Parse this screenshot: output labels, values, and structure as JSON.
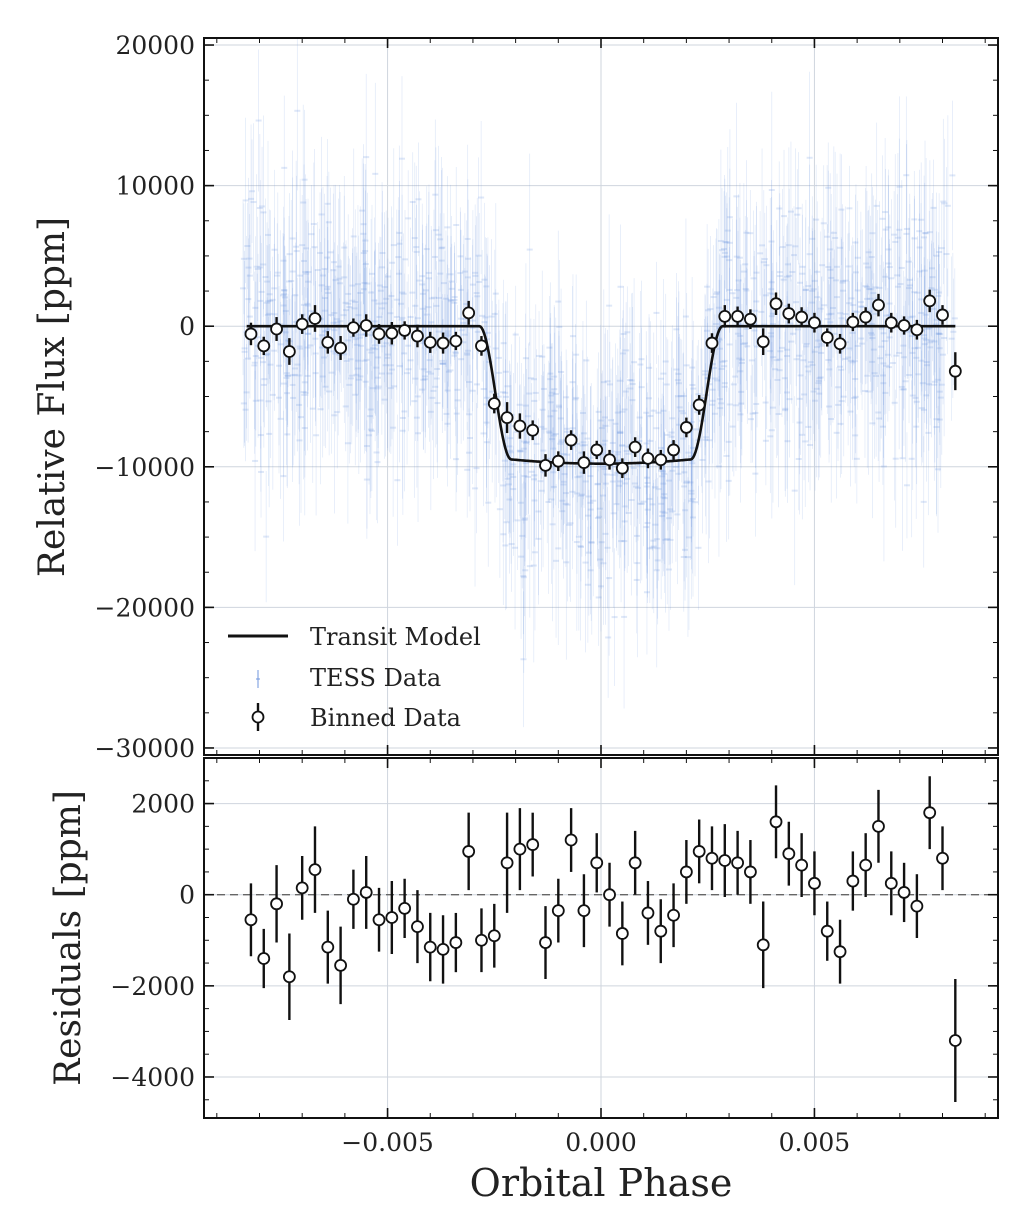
{
  "chart_data": [
    {
      "type": "scatter",
      "panel": "top",
      "ylabel": "Relative Flux [ppm]",
      "xlim": [
        -0.0093,
        0.0093
      ],
      "ylim": [
        -30500,
        20500
      ],
      "yticks": [
        20000,
        10000,
        0,
        -10000,
        -20000,
        -30000
      ],
      "ytick_labels": [
        "20000",
        "10000",
        "0",
        "−10000",
        "−20000",
        "−30000"
      ],
      "xticks": [
        -0.005,
        0.0,
        0.005
      ],
      "grid": true,
      "legend": {
        "placement": "lower-left",
        "entries": [
          "Transit Model",
          "TESS Data",
          "Binned Data"
        ]
      },
      "transit_model": {
        "depth": -9500,
        "t14": 0.0057,
        "t23": 0.0042,
        "x_range": [
          -0.0083,
          0.0083
        ]
      },
      "tess_data": {
        "x_range": [
          -0.0084,
          0.0083
        ],
        "scatter_sigma": 4500,
        "error_bar": 5000,
        "n_points": 1400
      },
      "binned": {
        "x": [
          -0.0082,
          -0.0079,
          -0.0076,
          -0.0073,
          -0.007,
          -0.0067,
          -0.0064,
          -0.0061,
          -0.0058,
          -0.0055,
          -0.0052,
          -0.0049,
          -0.0046,
          -0.0043,
          -0.004,
          -0.0037,
          -0.0034,
          -0.0031,
          -0.0028,
          -0.0025,
          -0.0022,
          -0.0019,
          -0.0016,
          -0.0013,
          -0.001,
          -0.0007,
          -0.0004,
          -0.0001,
          0.0002,
          0.0005,
          0.0008,
          0.0011,
          0.0014,
          0.0017,
          0.002,
          0.0023,
          0.0026,
          0.0029,
          0.0032,
          0.0035,
          0.0038,
          0.0041,
          0.0044,
          0.0047,
          0.005,
          0.0053,
          0.0056,
          0.0059,
          0.0062,
          0.0065,
          0.0068,
          0.0071,
          0.0074,
          0.0077,
          0.008,
          0.0083
        ],
        "y": [
          -550,
          -1400,
          -200,
          -1800,
          150,
          550,
          -1150,
          -1550,
          -100,
          50,
          -550,
          -500,
          -300,
          -700,
          -1150,
          -1200,
          -1050,
          950,
          -1400,
          -5500,
          -6500,
          -7100,
          -7400,
          -9900,
          -9600,
          -8100,
          -9700,
          -8800,
          -9500,
          -10100,
          -8600,
          -9400,
          -9500,
          -8800,
          -7200,
          -5600,
          -1200,
          700,
          700,
          500,
          -1100,
          1600,
          900,
          650,
          250,
          -800,
          -1250,
          300,
          650,
          1500,
          250,
          50,
          -250,
          1800,
          800,
          -3200
        ],
        "err": [
          800,
          650,
          850,
          950,
          700,
          950,
          800,
          850,
          650,
          800,
          700,
          800,
          650,
          800,
          750,
          750,
          650,
          850,
          700,
          700,
          1100,
          900,
          700,
          800,
          700,
          700,
          800,
          650,
          700,
          700,
          700,
          700,
          700,
          700,
          700,
          700,
          700,
          800,
          700,
          700,
          950,
          800,
          700,
          700,
          700,
          650,
          700,
          650,
          700,
          800,
          700,
          650,
          700,
          800,
          700,
          1350
        ]
      }
    },
    {
      "type": "scatter",
      "panel": "bottom",
      "xlabel": "Orbital Phase",
      "ylabel": "Residuals [ppm]",
      "xlim": [
        -0.0093,
        0.0093
      ],
      "ylim": [
        -4900,
        3000
      ],
      "yticks": [
        2000,
        0,
        -2000,
        -4000
      ],
      "ytick_labels": [
        "2000",
        "0",
        "−2000",
        "−4000"
      ],
      "xticks": [
        -0.005,
        0.0,
        0.005
      ],
      "xtick_labels": [
        "−0.005",
        "0.000",
        "0.005"
      ],
      "zero_line": "dashed",
      "grid": true,
      "residuals": {
        "x": [
          -0.0082,
          -0.0079,
          -0.0076,
          -0.0073,
          -0.007,
          -0.0067,
          -0.0064,
          -0.0061,
          -0.0058,
          -0.0055,
          -0.0052,
          -0.0049,
          -0.0046,
          -0.0043,
          -0.004,
          -0.0037,
          -0.0034,
          -0.0031,
          -0.0028,
          -0.0025,
          -0.0022,
          -0.0019,
          -0.0016,
          -0.0013,
          -0.001,
          -0.0007,
          -0.0004,
          -0.0001,
          0.0002,
          0.0005,
          0.0008,
          0.0011,
          0.0014,
          0.0017,
          0.002,
          0.0023,
          0.0026,
          0.0029,
          0.0032,
          0.0035,
          0.0038,
          0.0041,
          0.0044,
          0.0047,
          0.005,
          0.0053,
          0.0056,
          0.0059,
          0.0062,
          0.0065,
          0.0068,
          0.0071,
          0.0074,
          0.0077,
          0.008,
          0.0083
        ],
        "y": [
          -550,
          -1400,
          -200,
          -1800,
          150,
          550,
          -1150,
          -1550,
          -100,
          50,
          -550,
          -500,
          -300,
          -700,
          -1150,
          -1200,
          -1050,
          950,
          -1000,
          -900,
          700,
          1000,
          1100,
          -1050,
          -350,
          1200,
          -350,
          700,
          0,
          -850,
          700,
          -400,
          -800,
          -450,
          500,
          950,
          800,
          750,
          700,
          500,
          -1100,
          1600,
          900,
          650,
          250,
          -800,
          -1250,
          300,
          650,
          1500,
          250,
          50,
          -250,
          1800,
          800,
          -3200
        ],
        "err": [
          800,
          650,
          850,
          950,
          700,
          950,
          800,
          850,
          650,
          800,
          700,
          800,
          650,
          800,
          750,
          750,
          650,
          850,
          700,
          700,
          1100,
          900,
          700,
          800,
          700,
          700,
          800,
          650,
          700,
          700,
          700,
          700,
          700,
          700,
          700,
          700,
          700,
          800,
          700,
          700,
          950,
          800,
          700,
          700,
          700,
          650,
          700,
          650,
          700,
          800,
          700,
          650,
          700,
          800,
          700,
          1350
        ]
      }
    }
  ],
  "colors": {
    "tess_data": "#6f95dd",
    "model": "#111111",
    "binned_edge": "#111111",
    "grid": "#cfd5de",
    "zero_line": "#666666"
  }
}
